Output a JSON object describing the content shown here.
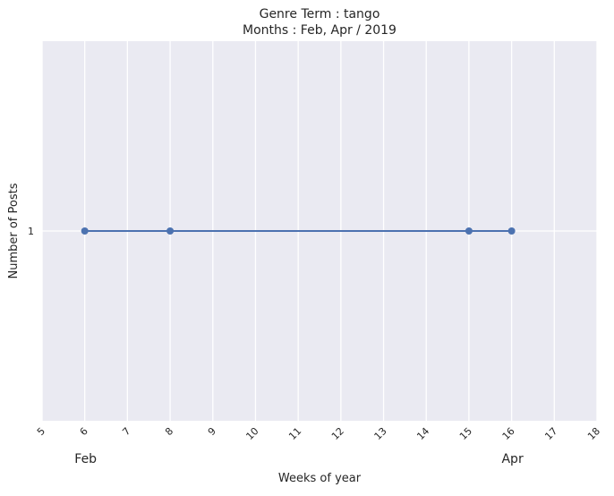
{
  "chart_data": {
    "type": "line",
    "title": [
      "Genre Term : tango",
      "Months : Feb, Apr / 2019"
    ],
    "xlabel": "Weeks of year",
    "ylabel": "Number of Posts",
    "x_ticks": [
      5,
      6,
      7,
      8,
      9,
      10,
      11,
      12,
      13,
      14,
      15,
      16,
      17,
      18
    ],
    "y_ticks": [
      1
    ],
    "xlim": [
      5,
      18
    ],
    "ylim": [
      0,
      2
    ],
    "grid": true,
    "month_labels": [
      {
        "label": "Feb",
        "week": 6
      },
      {
        "label": "Apr",
        "week": 16
      }
    ],
    "series": [
      {
        "x": [
          6,
          8,
          15,
          16
        ],
        "y": [
          1,
          1,
          1,
          1
        ],
        "color": "#4c72b0"
      }
    ],
    "colors": {
      "background": "#eaeaf2",
      "grid": "#ffffff",
      "line": "#4c72b0"
    }
  }
}
